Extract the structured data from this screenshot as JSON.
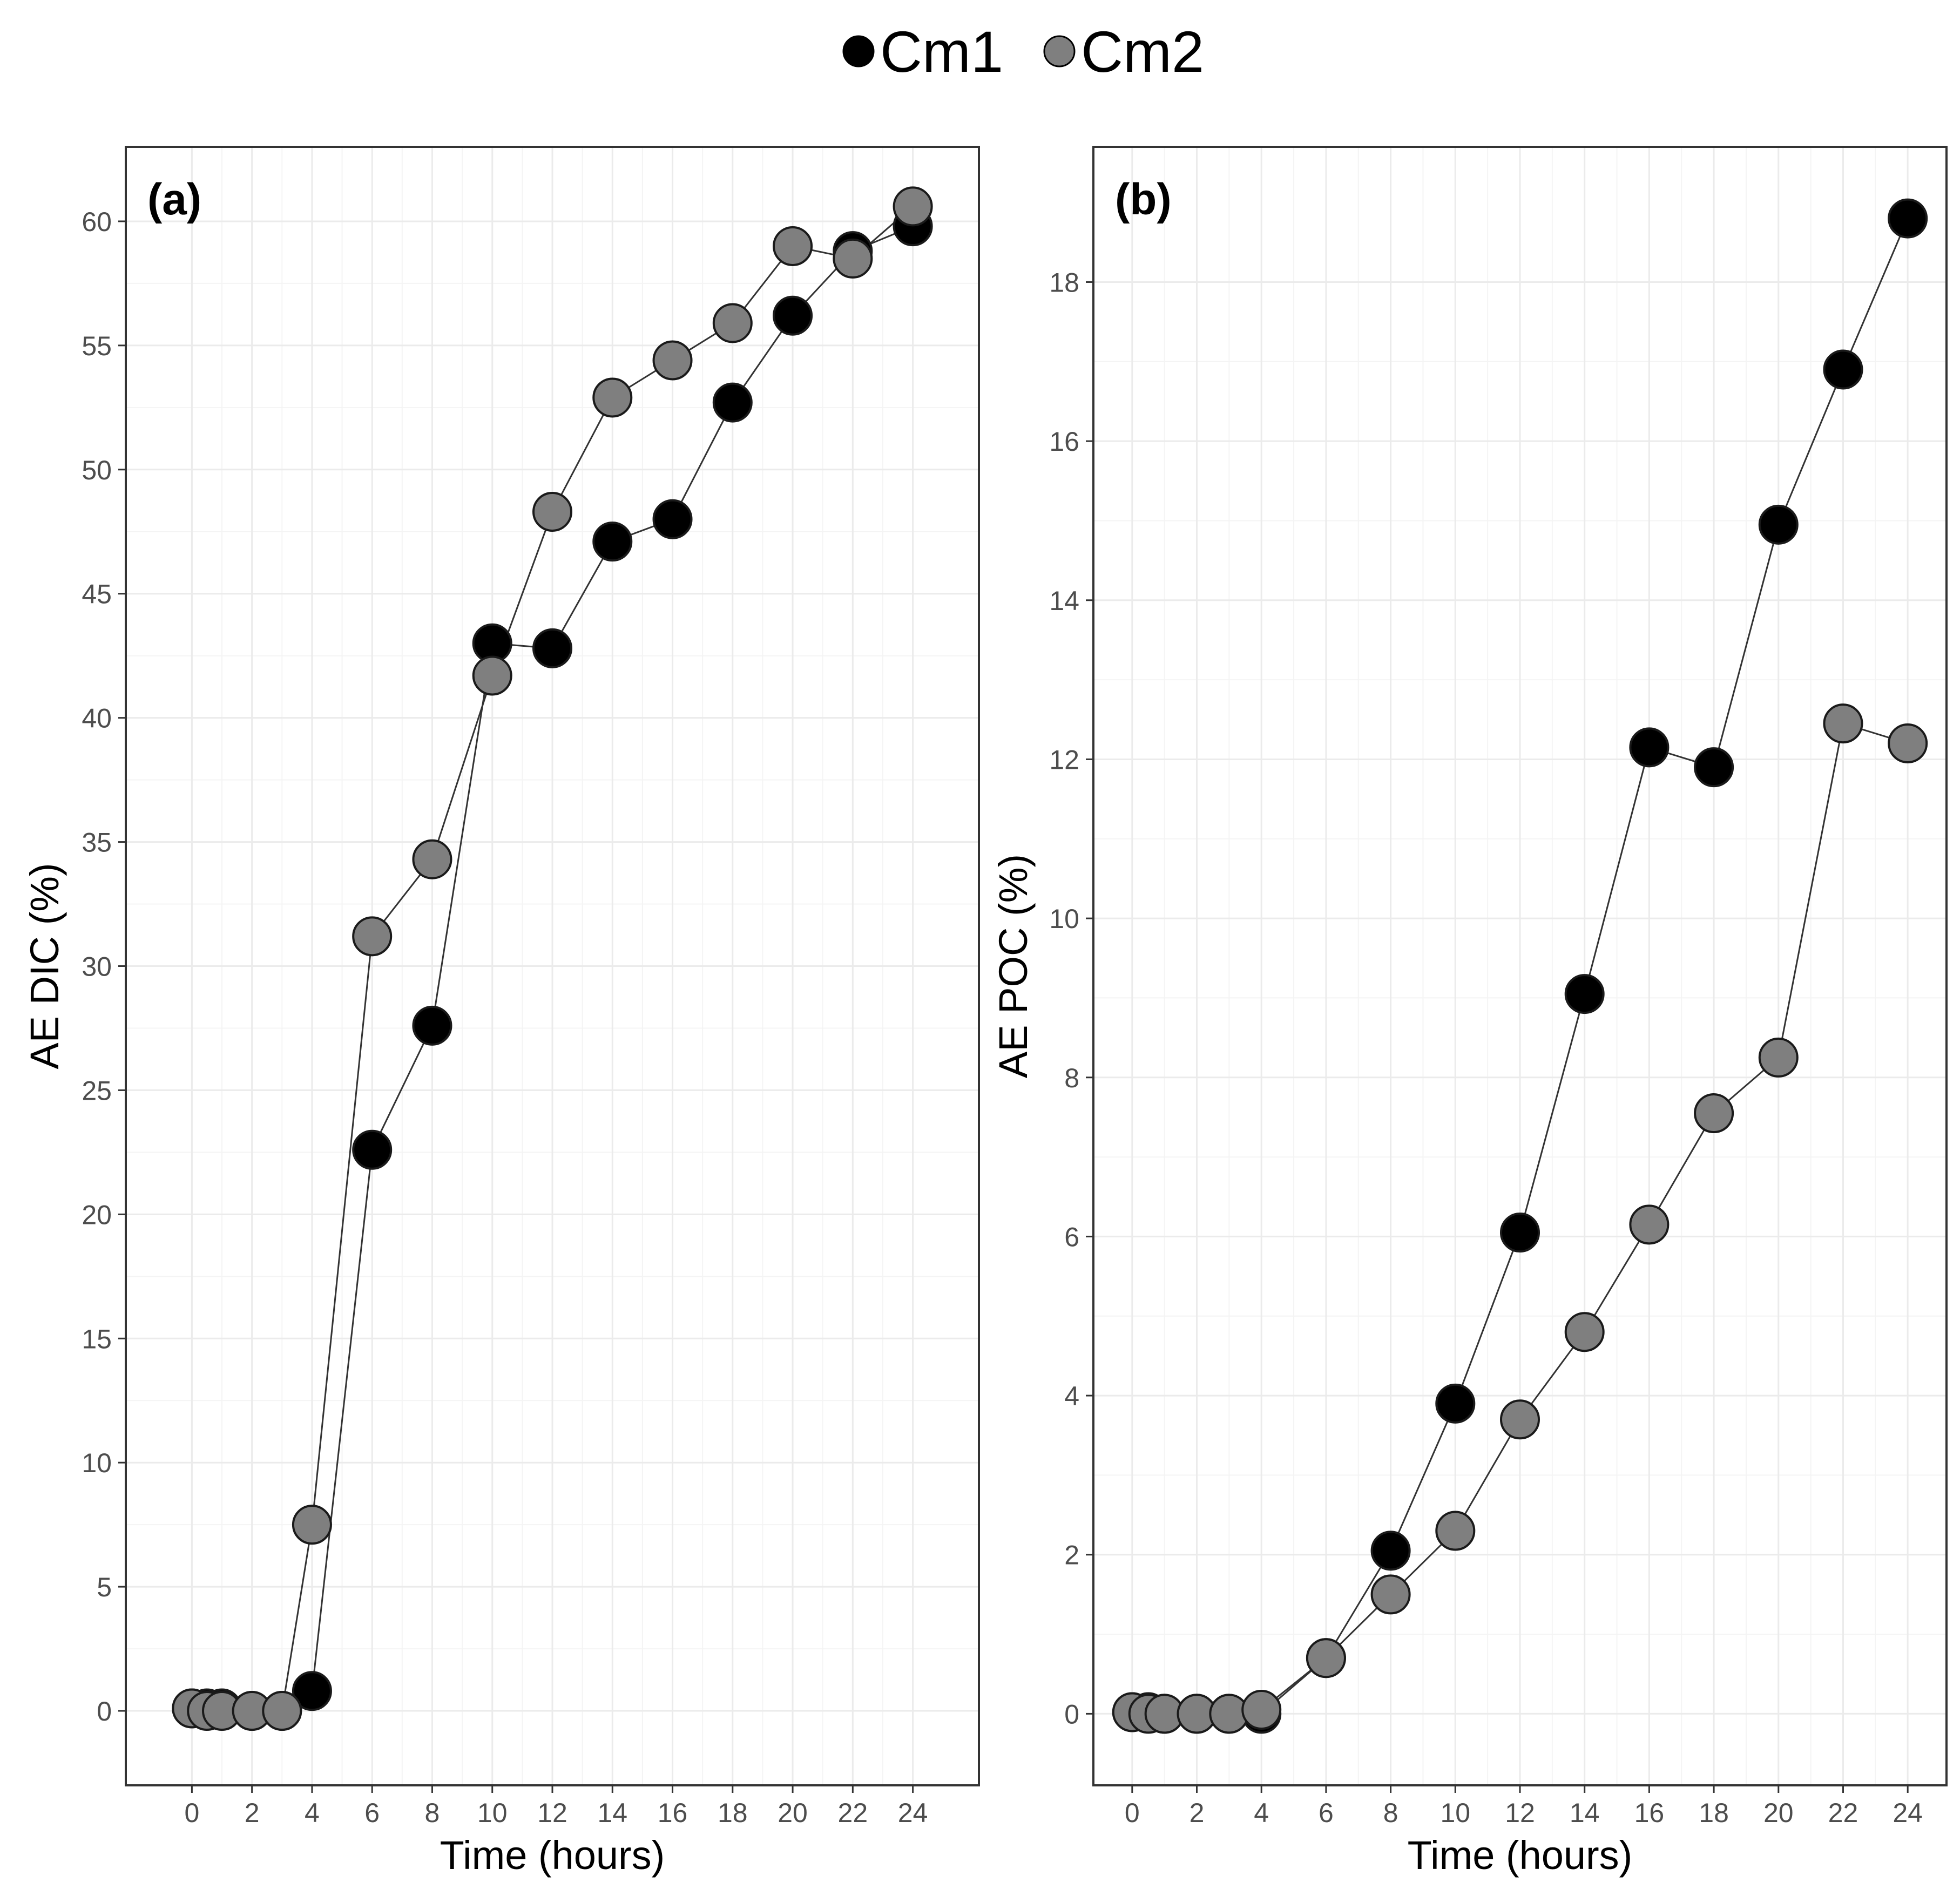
{
  "legend": [
    {
      "label": "Cm1",
      "color": "#000000"
    },
    {
      "label": "Cm2",
      "color": "#7f7f7f"
    }
  ],
  "colors": {
    "cm1": "#000000",
    "cm2": "#7f7f7f",
    "grid": "#ebebeb",
    "frame": "#333333",
    "line": "#333333"
  },
  "chart_data": [
    {
      "type": "line",
      "panel_label": "(a)",
      "xlabel": "Time (hours)",
      "ylabel": "AE DIC (%)",
      "xlim": [
        -2.2,
        26.2
      ],
      "ylim": [
        -3,
        63
      ],
      "x_ticks": [
        0,
        2,
        4,
        6,
        8,
        10,
        12,
        14,
        16,
        18,
        20,
        22,
        24
      ],
      "y_ticks": [
        0,
        5,
        10,
        15,
        20,
        25,
        30,
        35,
        40,
        45,
        50,
        55,
        60
      ],
      "series": [
        {
          "name": "Cm1",
          "x": [
            0,
            0.5,
            1,
            2,
            3,
            4,
            6,
            8,
            10,
            12,
            14,
            16,
            18,
            20,
            22,
            24
          ],
          "y": [
            0.1,
            0.1,
            0.1,
            0,
            0,
            0.8,
            22.6,
            27.6,
            43.0,
            42.8,
            47.1,
            48.0,
            52.7,
            56.2,
            58.8,
            59.8
          ]
        },
        {
          "name": "Cm2",
          "x": [
            0,
            0.5,
            1,
            2,
            3,
            4,
            6,
            8,
            10,
            12,
            14,
            16,
            18,
            20,
            22,
            24
          ],
          "y": [
            0.1,
            0,
            0,
            0,
            0,
            7.5,
            31.2,
            34.3,
            41.7,
            48.3,
            52.9,
            54.4,
            55.9,
            59.0,
            58.5,
            60.6
          ]
        }
      ]
    },
    {
      "type": "line",
      "panel_label": "(b)",
      "xlabel": "Time (hours)",
      "ylabel": "AE POC (%)",
      "xlim": [
        -1.2,
        25.2
      ],
      "ylim": [
        -0.9,
        19.7
      ],
      "x_ticks": [
        0,
        2,
        4,
        6,
        8,
        10,
        12,
        14,
        16,
        18,
        20,
        22,
        24
      ],
      "y_ticks": [
        0,
        2,
        4,
        6,
        8,
        10,
        12,
        14,
        16,
        18
      ],
      "series": [
        {
          "name": "Cm1",
          "x": [
            0,
            0.5,
            1,
            2,
            3,
            4,
            6,
            8,
            10,
            12,
            14,
            16,
            18,
            20,
            22,
            24
          ],
          "y": [
            0.02,
            0.02,
            0,
            0,
            0,
            0,
            0.7,
            2.05,
            3.9,
            6.05,
            9.05,
            12.15,
            11.9,
            14.95,
            16.9,
            18.8
          ]
        },
        {
          "name": "Cm2",
          "x": [
            0,
            0.5,
            1,
            2,
            3,
            4,
            6,
            8,
            10,
            12,
            14,
            16,
            18,
            20,
            22,
            24
          ],
          "y": [
            0.02,
            0,
            0,
            0,
            0,
            0.05,
            0.7,
            1.5,
            2.3,
            3.7,
            4.8,
            6.15,
            7.55,
            8.25,
            12.45,
            12.2
          ]
        }
      ]
    }
  ]
}
